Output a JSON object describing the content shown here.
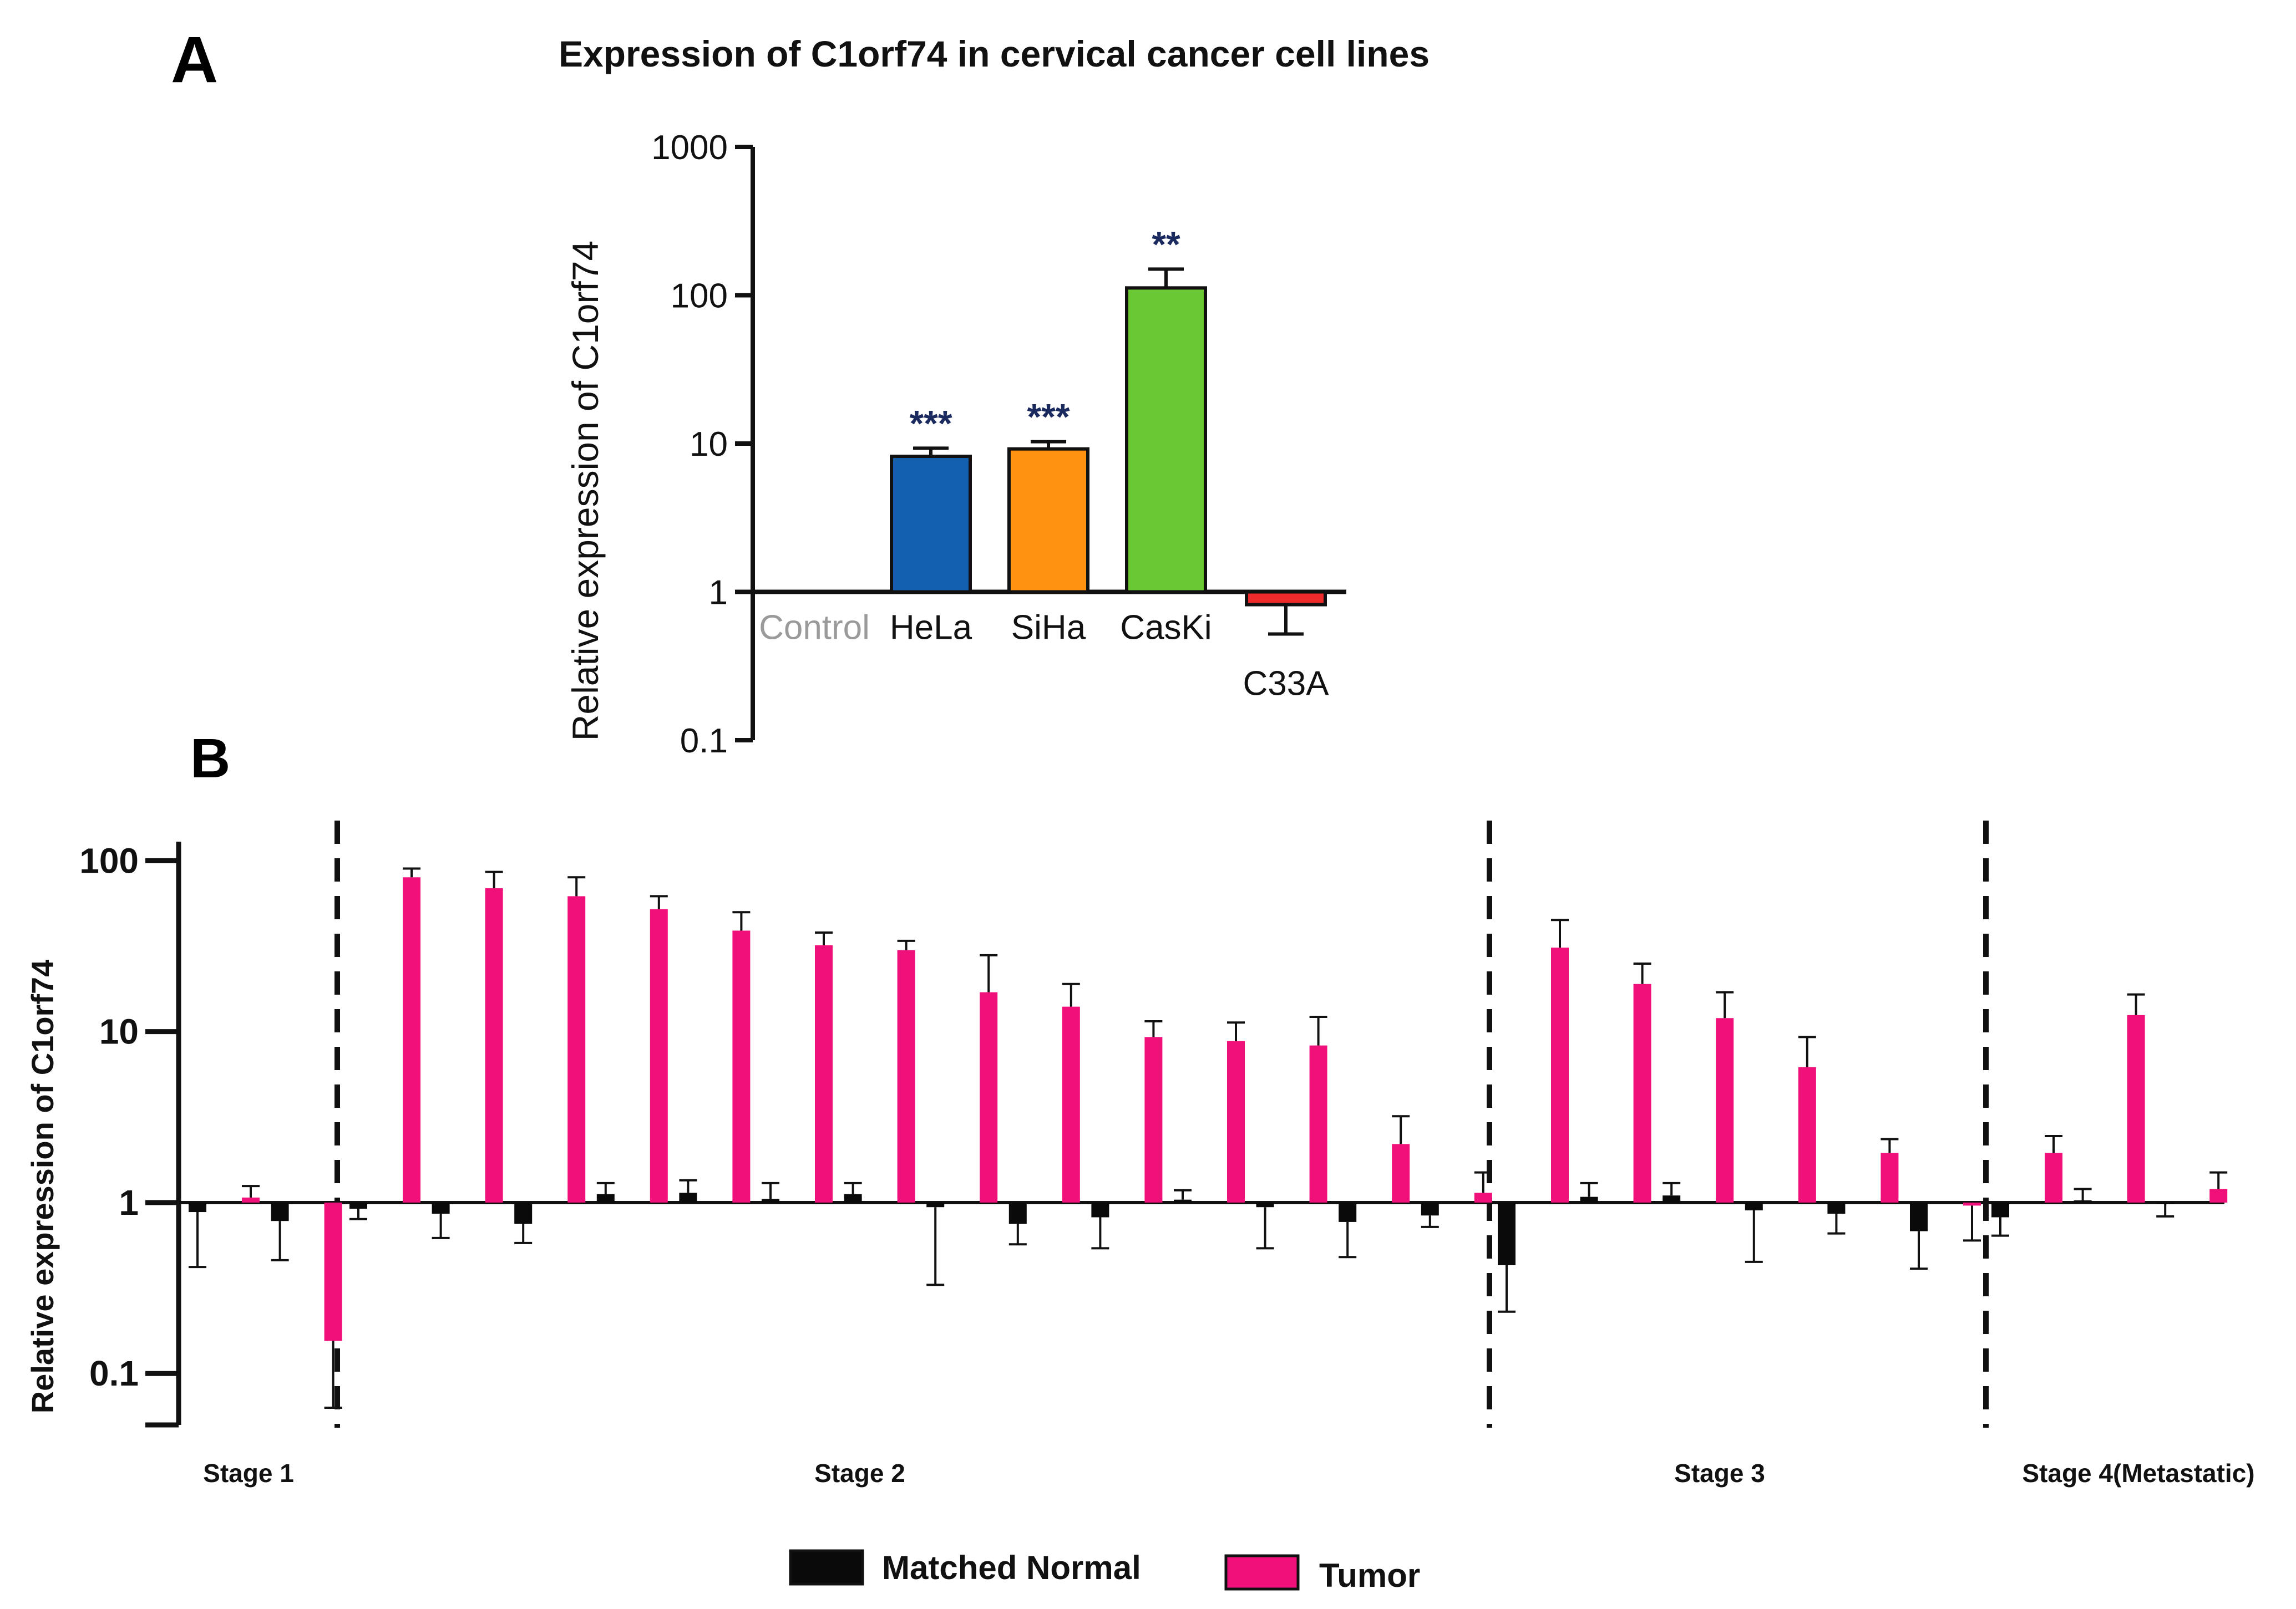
{
  "chart_data": [
    {
      "panel_label": "A",
      "type": "bar",
      "title": "Expression of C1orf74 in cervical cancer cell lines",
      "ylabel": "Relative expression of C1orf74",
      "yscale": "log",
      "ylim": [
        0.1,
        1000
      ],
      "yticks": [
        "1000",
        "100",
        "10",
        "1",
        "0.1"
      ],
      "ytick_values": [
        1000,
        100,
        10,
        1,
        0.1
      ],
      "baseline": 1,
      "categories": [
        "Control",
        "HeLa",
        "SiHa",
        "CasKi",
        "C33A"
      ],
      "values": [
        1,
        8.2,
        9.2,
        112,
        0.82
      ],
      "error_values": [
        null,
        9.3,
        10.3,
        150,
        0.52
      ],
      "significance": [
        "",
        "***",
        "***",
        "**",
        ""
      ],
      "colors": [
        "#9e9e9e",
        "#1460b0",
        "#ff9210",
        "#6ac832",
        "#ee2a2a"
      ],
      "label_colors": [
        "#9a9a9a",
        "#111111",
        "#111111",
        "#111111",
        "#111111"
      ],
      "star_color": "#1b2a5e"
    },
    {
      "panel_label": "B",
      "type": "bar",
      "ylabel": "Relative expression of C1orf74",
      "yscale": "log",
      "ylim": [
        0.05,
        120
      ],
      "yticks": [
        "100",
        "10",
        "1",
        "0.1"
      ],
      "ytick_values": [
        100,
        10,
        1,
        0.1
      ],
      "baseline": 1,
      "legend_position": "bottom",
      "series": [
        {
          "name": "Matched Normal",
          "color": "#0a0a0a",
          "values": [
            0.88,
            0.78,
            0.92,
            0.86,
            0.75,
            1.12,
            1.14,
            1.05,
            1.12,
            0.94,
            0.75,
            0.82,
            1.04,
            0.94,
            0.77,
            0.84,
            0.43,
            1.08,
            1.1,
            0.9,
            0.86,
            0.68,
            0.82,
            1.03,
            0.98
          ],
          "error_values": [
            0.42,
            0.46,
            0.8,
            0.62,
            0.58,
            1.3,
            1.35,
            1.3,
            1.3,
            0.33,
            0.57,
            0.54,
            1.18,
            0.54,
            0.48,
            0.72,
            0.23,
            1.3,
            1.3,
            0.45,
            0.66,
            0.41,
            0.64,
            1.2,
            0.83
          ]
        },
        {
          "name": "Tumor",
          "color": "#f0107a",
          "values": [
            1.07,
            0.155,
            80,
            69,
            62,
            52,
            39,
            32,
            30,
            17,
            14,
            9.3,
            8.8,
            8.3,
            2.2,
            1.14,
            31,
            19,
            12,
            6.2,
            1.95,
            0.96,
            1.95,
            12.5,
            1.2
          ],
          "error_values": [
            1.25,
            0.063,
            90,
            86,
            80,
            62,
            50,
            38,
            34,
            28,
            19,
            11.5,
            11.3,
            12.2,
            3.2,
            1.5,
            45,
            25,
            17,
            9.3,
            2.35,
            0.6,
            2.45,
            16.5,
            1.5
          ]
        }
      ],
      "groups": [
        {
          "label": "Stage 1",
          "pair_count": 2
        },
        {
          "label": "Stage 2",
          "pair_count": 14
        },
        {
          "label": "Stage 3",
          "pair_count": 6
        },
        {
          "label": "Stage 4(Metastatic)",
          "pair_count": 3
        }
      ]
    }
  ]
}
